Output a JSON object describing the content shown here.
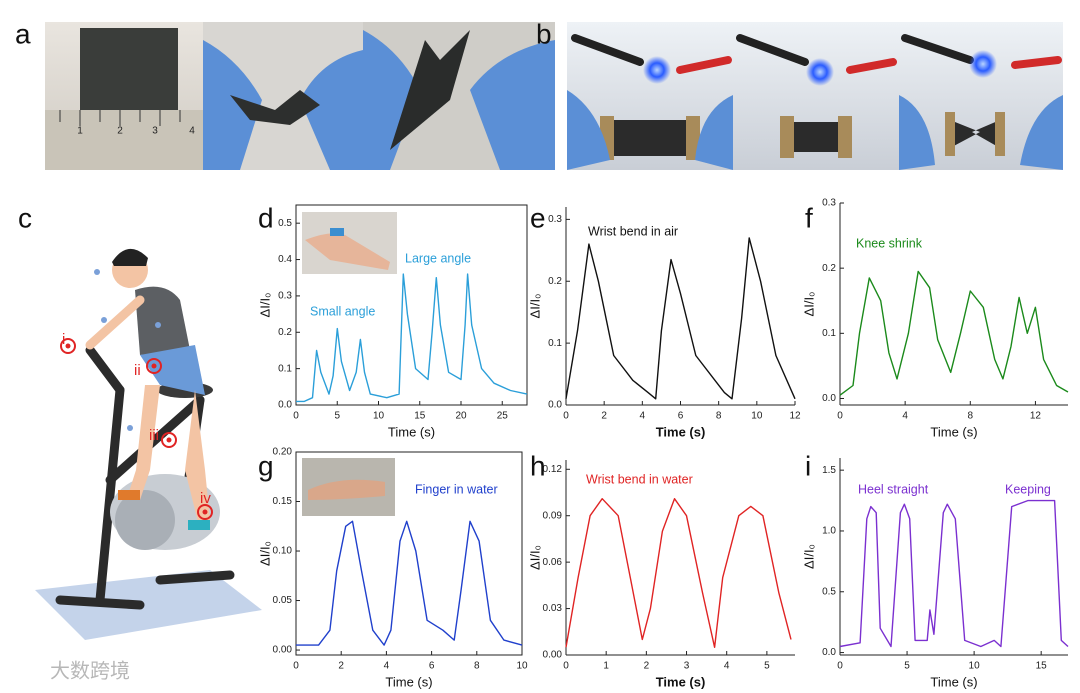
{
  "figure": {
    "panels": [
      "a",
      "b",
      "c"
    ],
    "ruler_labels": [
      "1",
      "2",
      "3",
      "4"
    ],
    "markers": [
      "i",
      "ii",
      "iii",
      "iv"
    ],
    "watermark": "大数跨境"
  },
  "chart_data": [
    {
      "type": "line",
      "panel": "d",
      "color": "#2b9fd9",
      "x_label": "Time (s)",
      "y_label": "ΔI/I₀",
      "annotations": [
        "Small angle",
        "Large angle"
      ],
      "xlim": [
        0,
        28
      ],
      "ylim": [
        0,
        0.55
      ],
      "xticks": [
        0,
        5,
        10,
        15,
        20,
        25
      ],
      "yticks": [
        {
          "value": 0,
          "label": "0.0"
        },
        0.1,
        0.2,
        0.3,
        0.4,
        0.5
      ],
      "x": [
        0,
        1,
        2,
        2.5,
        3,
        4,
        4.5,
        5,
        5.5,
        6.5,
        7.3,
        7.8,
        8.3,
        9,
        11,
        12.5,
        13,
        13.5,
        14.5,
        16,
        16.5,
        17,
        17.5,
        18.5,
        20,
        20.5,
        20.8,
        21.3,
        22.5,
        24,
        26,
        28
      ],
      "values": [
        0.01,
        0.01,
        0.02,
        0.15,
        0.09,
        0.03,
        0.08,
        0.21,
        0.12,
        0.04,
        0.09,
        0.18,
        0.09,
        0.03,
        0.02,
        0.03,
        0.36,
        0.25,
        0.1,
        0.07,
        0.2,
        0.35,
        0.22,
        0.09,
        0.07,
        0.22,
        0.36,
        0.22,
        0.1,
        0.06,
        0.04,
        0.03
      ]
    },
    {
      "type": "line",
      "panel": "e",
      "color": "#111111",
      "x_label": "Time (s)",
      "y_label": "ΔI/I₀",
      "annotations": [
        "Wrist bend in air"
      ],
      "xlim": [
        0,
        12
      ],
      "ylim": [
        0,
        0.32
      ],
      "xticks": [
        0,
        2,
        4,
        6,
        8,
        10,
        12
      ],
      "yticks": [
        {
          "value": 0,
          "label": "0.0"
        },
        0.1,
        0.2,
        0.3
      ],
      "x": [
        0,
        0.6,
        1.2,
        1.7,
        2.5,
        3.5,
        4.3,
        4.7,
        5,
        5.5,
        6,
        6.8,
        8.3,
        8.7,
        9.2,
        9.6,
        10.2,
        11,
        12
      ],
      "values": [
        0.01,
        0.12,
        0.26,
        0.2,
        0.08,
        0.04,
        0.02,
        0.01,
        0.12,
        0.235,
        0.18,
        0.08,
        0.02,
        0.01,
        0.14,
        0.27,
        0.2,
        0.08,
        0.01
      ]
    },
    {
      "type": "line",
      "panel": "f",
      "color": "#1b8a1b",
      "x_label": "Time (s)",
      "y_label": "ΔI/I₀",
      "annotations": [
        "Knee shrink"
      ],
      "xlim": [
        0,
        14
      ],
      "ylim": [
        -0.01,
        0.3
      ],
      "xticks": [
        0,
        4,
        8,
        12
      ],
      "yticks": [
        {
          "value": 0,
          "label": "0.0"
        },
        0.1,
        0.2,
        0.3
      ],
      "x": [
        0,
        0.8,
        1.2,
        1.8,
        2.5,
        3,
        3.5,
        4.2,
        4.8,
        5.5,
        6,
        6.8,
        7.4,
        8,
        8.8,
        9.5,
        10,
        10.5,
        11,
        11.5,
        12,
        12.5,
        13.3,
        14
      ],
      "values": [
        0.005,
        0.02,
        0.1,
        0.185,
        0.15,
        0.07,
        0.03,
        0.1,
        0.195,
        0.17,
        0.09,
        0.04,
        0.1,
        0.165,
        0.14,
        0.06,
        0.03,
        0.08,
        0.155,
        0.1,
        0.14,
        0.06,
        0.02,
        0.01
      ]
    },
    {
      "type": "line",
      "panel": "g",
      "color": "#2040cc",
      "x_label": "Time (s)",
      "y_label": "ΔI/I₀",
      "annotations": [
        "Finger in water"
      ],
      "xlim": [
        0,
        10
      ],
      "ylim": [
        -0.005,
        0.2
      ],
      "xticks": [
        0,
        2,
        4,
        6,
        8,
        10
      ],
      "yticks": [
        {
          "value": 0,
          "label": "0.00"
        },
        0.05,
        {
          "value": 0.1,
          "label": "0.10"
        },
        0.15,
        {
          "value": 0.2,
          "label": "0.20"
        }
      ],
      "x": [
        0,
        1,
        1.5,
        1.8,
        2.2,
        2.5,
        2.9,
        3.4,
        3.9,
        4.2,
        4.6,
        4.9,
        5.3,
        5.8,
        6.5,
        7,
        7.3,
        7.7,
        8.1,
        8.6,
        9.2,
        10
      ],
      "values": [
        0.005,
        0.005,
        0.02,
        0.08,
        0.125,
        0.13,
        0.08,
        0.02,
        0.005,
        0.02,
        0.11,
        0.13,
        0.1,
        0.03,
        0.02,
        0.01,
        0.06,
        0.13,
        0.11,
        0.03,
        0.01,
        0.005
      ]
    },
    {
      "type": "line",
      "panel": "h",
      "color": "#e02424",
      "x_label": "Time (s)",
      "y_label": "ΔI/I₀",
      "annotations": [
        "Wrist bend in water"
      ],
      "xlim": [
        0,
        5.7
      ],
      "ylim": [
        0,
        0.126
      ],
      "xticks": [
        0,
        1,
        2,
        3,
        4,
        5
      ],
      "yticks": [
        {
          "value": 0,
          "label": "0.00"
        },
        0.03,
        0.06,
        0.09,
        0.12
      ],
      "x": [
        0,
        0.3,
        0.6,
        0.9,
        1.3,
        1.6,
        1.9,
        2.1,
        2.4,
        2.7,
        3,
        3.4,
        3.7,
        3.9,
        4.3,
        4.6,
        4.9,
        5.3,
        5.6
      ],
      "values": [
        0.005,
        0.05,
        0.09,
        0.101,
        0.09,
        0.05,
        0.01,
        0.03,
        0.08,
        0.101,
        0.09,
        0.04,
        0.005,
        0.05,
        0.09,
        0.096,
        0.09,
        0.04,
        0.01
      ]
    },
    {
      "type": "line",
      "panel": "i",
      "color": "#7b30d0",
      "x_label": "Time (s)",
      "y_label": "ΔI/I₀",
      "annotations": [
        "Heel straight",
        "Keeping"
      ],
      "xlim": [
        0,
        17
      ],
      "ylim": [
        -0.02,
        1.6
      ],
      "xticks": [
        0,
        5,
        10,
        15
      ],
      "yticks": [
        {
          "value": 0,
          "label": "0.0"
        },
        0.5,
        {
          "value": 1,
          "label": "1.0"
        },
        1.5
      ],
      "x": [
        0,
        1.5,
        2,
        2.3,
        2.7,
        3,
        3.8,
        4.5,
        4.8,
        5.2,
        5.6,
        6.5,
        6.7,
        7,
        7.7,
        8,
        8.6,
        9.3,
        10.5,
        11.5,
        12,
        12.8,
        14,
        16,
        16.5,
        17
      ],
      "values": [
        0.05,
        0.08,
        1.1,
        1.2,
        1.15,
        0.2,
        0.05,
        1.15,
        1.22,
        1.1,
        0.1,
        0.1,
        0.35,
        0.15,
        1.15,
        1.22,
        1.1,
        0.1,
        0.05,
        0.1,
        0.05,
        1.2,
        1.25,
        1.25,
        0.1,
        0.05
      ]
    }
  ]
}
